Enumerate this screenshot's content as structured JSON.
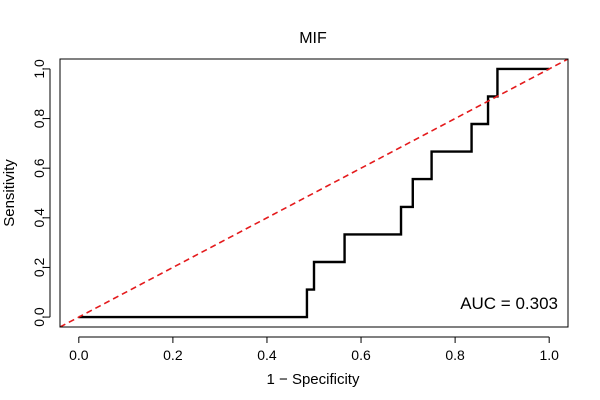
{
  "chart_data": {
    "type": "line",
    "title": "MIF",
    "xlabel": "1 − Specificity",
    "ylabel": "Sensitivity",
    "xlim": [
      -0.04,
      1.04
    ],
    "ylim": [
      -0.04,
      1.04
    ],
    "x_ticks": [
      "0.0",
      "0.2",
      "0.4",
      "0.6",
      "0.8",
      "1.0"
    ],
    "y_ticks": [
      "0.0",
      "0.2",
      "0.4",
      "0.6",
      "0.8",
      "1.0"
    ],
    "grid": false,
    "annotation": "AUC = 0.303",
    "series": [
      {
        "color": "#000000",
        "style": "step",
        "x": [
          0.0,
          0.485,
          0.485,
          0.5,
          0.5,
          0.565,
          0.565,
          0.685,
          0.685,
          0.71,
          0.71,
          0.75,
          0.75,
          0.835,
          0.835,
          0.87,
          0.87,
          0.89,
          0.89,
          1.0
        ],
        "y": [
          0.0,
          0.0,
          0.111,
          0.111,
          0.222,
          0.222,
          0.333,
          0.333,
          0.444,
          0.444,
          0.556,
          0.556,
          0.667,
          0.667,
          0.778,
          0.778,
          0.889,
          0.889,
          1.0,
          1.0
        ]
      },
      {
        "color": "#e41a1c",
        "style": "dashed",
        "x": [
          -0.04,
          1.04
        ],
        "y": [
          -0.04,
          1.04
        ]
      }
    ]
  }
}
